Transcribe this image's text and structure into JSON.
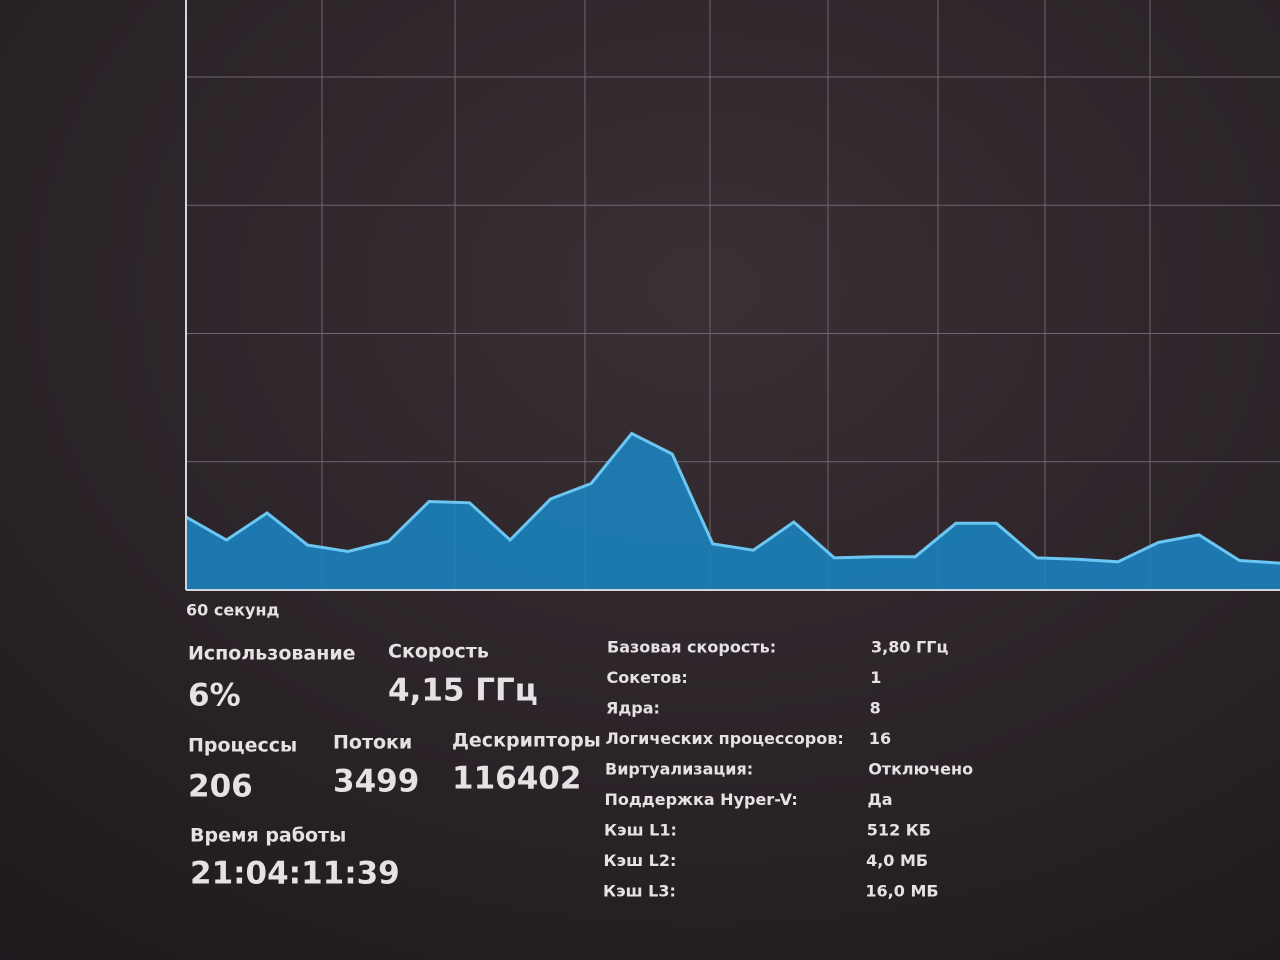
{
  "chart_data": {
    "type": "area",
    "x_label": "60 секунд",
    "values": [
      5.7,
      3.9,
      6.0,
      3.5,
      3.0,
      3.8,
      6.9,
      6.8,
      3.9,
      7.1,
      8.3,
      12.2,
      10.6,
      3.6,
      3.1,
      5.3,
      2.5,
      2.6,
      2.6,
      5.2,
      5.2,
      2.5,
      2.4,
      2.2,
      3.7,
      4.3,
      2.3,
      2.1
    ],
    "color": "#1b82bd",
    "line_color": "#6cc6f2",
    "ylim": [
      0,
      46
    ],
    "yticks": [
      10,
      20,
      30,
      40
    ],
    "grid": true
  },
  "stats": [
    {
      "label": "Использование",
      "value": "6%"
    },
    {
      "label": "Скорость",
      "value": "4,15 ГГц"
    },
    {
      "label": "Процессы",
      "value": "206"
    },
    {
      "label": "Потоки",
      "value": "3499"
    },
    {
      "label": "Дескрипторы",
      "value": "116402"
    },
    {
      "label": "Время работы",
      "value": "21:04:11:39"
    }
  ],
  "details": [
    {
      "label": "Базовая скорость:",
      "value": "3,80 ГГц"
    },
    {
      "label": "Сокетов:",
      "value": "1"
    },
    {
      "label": "Ядра:",
      "value": "8"
    },
    {
      "label": "Логических процессоров:",
      "value": "16"
    },
    {
      "label": "Виртуализация:",
      "value": "Отключено"
    },
    {
      "label": "Поддержка Hyper-V:",
      "value": "Да"
    },
    {
      "label": "Кэш L1:",
      "value": "512 КБ"
    },
    {
      "label": "Кэш L2:",
      "value": "4,0 МБ"
    },
    {
      "label": "Кэш L3:",
      "value": "16,0 МБ"
    }
  ]
}
